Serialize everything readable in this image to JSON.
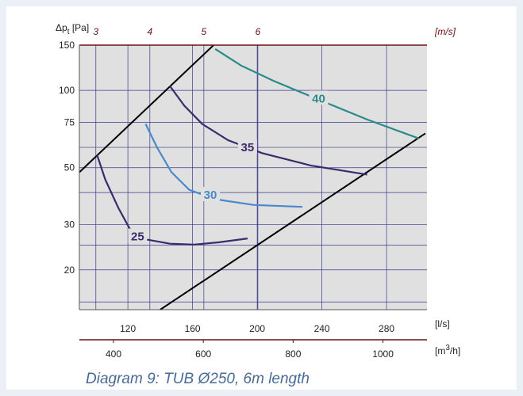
{
  "chart_data": {
    "type": "line",
    "caption": "Diagram 9: TUB Ø250, 6m length",
    "ylabel": {
      "prefix": "Δp",
      "sub": "t",
      "suffix": " [Pa]"
    },
    "y_scale": "log",
    "ylim": [
      14,
      150
    ],
    "yticks": [
      20,
      30,
      50,
      75,
      100,
      150
    ],
    "x_ls": {
      "label": "[l/s]",
      "range": [
        90,
        305
      ],
      "ticks": [
        120,
        160,
        200,
        240,
        280
      ]
    },
    "x_m3h": {
      "label_pre": "[m",
      "label_sup": "3",
      "label_post": "/h]",
      "ticks": [
        400,
        600,
        800,
        1000
      ]
    },
    "x_ms": {
      "label": "[m/s]",
      "ticks": [
        3,
        4,
        5,
        6
      ]
    },
    "grid": true,
    "colors": {
      "plot_bg": "#e0e0e0",
      "grid": "#3a3a8a",
      "axis_top": "#6a1010",
      "axis_bottom": "#6a1010",
      "caption": "#4a6a96"
    },
    "boundaries": [
      {
        "x": [
          90,
          173
        ],
        "y": [
          48,
          150
        ]
      },
      {
        "x": [
          140,
          304
        ],
        "y": [
          14,
          68
        ]
      }
    ],
    "series": [
      {
        "name": "25",
        "color": "#3a2a6e",
        "x": [
          101,
          106,
          114,
          121,
          131,
          146,
          161,
          176,
          194
        ],
        "y": [
          56,
          45,
          35,
          29,
          26.3,
          25.3,
          25.1,
          25.6,
          26.5
        ],
        "label_at": [
          126,
          27
        ]
      },
      {
        "name": "30",
        "color": "#4a88cc",
        "x": [
          131,
          138,
          147,
          158,
          174,
          198,
          228
        ],
        "y": [
          74,
          60,
          48,
          41,
          37.7,
          35.8,
          35.2
        ],
        "label_at": [
          171,
          39.2
        ]
      },
      {
        "name": "35",
        "color": "#3a2a6e",
        "x": [
          146,
          155,
          166,
          182,
          203,
          233,
          268
        ],
        "y": [
          104,
          87,
          74,
          64,
          57,
          51,
          47
        ],
        "label_at": [
          194,
          60
        ]
      },
      {
        "name": "40",
        "color": "#2a8a8a",
        "x": [
          174,
          190,
          210,
          238,
          268,
          300
        ],
        "y": [
          145,
          125,
          109,
          92,
          77,
          65
        ],
        "label_at": [
          238,
          93
        ]
      }
    ]
  }
}
